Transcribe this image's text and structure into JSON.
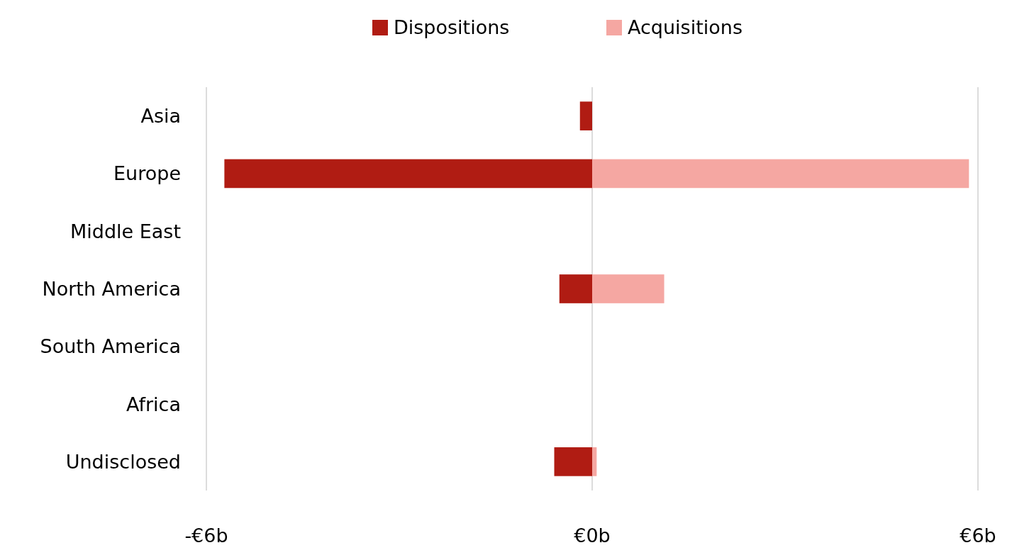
{
  "chart_data": {
    "type": "bar",
    "orientation": "horizontal",
    "stacked": true,
    "categories": [
      "Asia",
      "Europe",
      "Middle East",
      "North America",
      "South America",
      "Africa",
      "Undisclosed"
    ],
    "series": [
      {
        "name": "Dispositions",
        "color": "#b01c13",
        "values": [
          -0.19,
          -5.72,
          null,
          -0.51,
          null,
          null,
          -0.59
        ]
      },
      {
        "name": "Acquisitions",
        "color": "#f5a7a2",
        "values": [
          null,
          5.86,
          null,
          1.12,
          null,
          null,
          0.07
        ]
      }
    ],
    "xlim": [
      -6,
      6
    ],
    "xticks": [
      {
        "value": -6,
        "label": "-€6b"
      },
      {
        "value": 0,
        "label": "€0b"
      },
      {
        "value": 6,
        "label": "€6b"
      }
    ],
    "grid": "x",
    "legend": "top"
  }
}
